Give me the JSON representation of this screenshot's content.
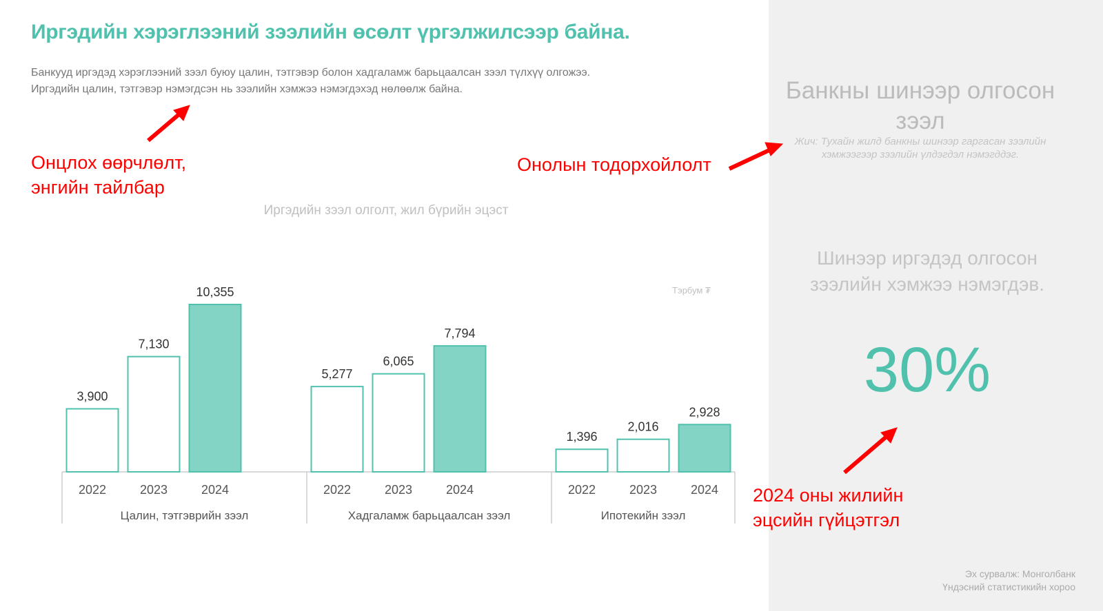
{
  "title": "Иргэдийн хэрэглээний зээлийн өсөлт үргэлжилсээр байна.",
  "subtitle_lines": [
    "Банкууд иргэдэд хэрэглээний зээл буюу цалин, тэтгэвэр болон хадгаламж барьцаалсан зээл түлхүү олгожээ.",
    "Иргэдийн цалин, тэтгэвэр нэмэгдсэн нь зээлийн хэмжээ нэмэгдэхэд нөлөөлж байна."
  ],
  "annotations": {
    "left_1": "Онцлох өөрчлөлт,",
    "left_2": "энгийн тайлбар",
    "middle": "Онолын тодорхойлолт",
    "bottom_1": "2024 оны жилийн",
    "bottom_2": "эцсийн гүйцэтгэл"
  },
  "right_panel": {
    "heading": "Банкны шинээр олгосон зээл",
    "note": "Жич: Тухайн жилд банкны шинээр гаргасан зээлийн хэмжээгээр зээлийн үлдэгдэл нэмэгддэг.",
    "statement": "Шинээр иргэдэд олгосон зээлийн хэмжээ нэмэгдэв.",
    "percent": "30%",
    "source_1": "Эх сурвалж: Монголбанк",
    "source_2": "Үндэсний статистикийн хороо"
  },
  "colors": {
    "accent": "#4fc1ad",
    "bar_fill_2024": "#84d4c6",
    "annotation": "#ff0000"
  },
  "chart_data": {
    "type": "bar",
    "title": "Иргэдийн зээл олголт, жил бүрийн эцэст",
    "unit": "Тэрбум ₮",
    "categories": [
      "Цалин, тэтгэврийн зээл",
      "Хадгаламж барьцаалсан зээл",
      "Ипотекийн зээл"
    ],
    "years": [
      "2022",
      "2023",
      "2024"
    ],
    "values": [
      [
        3900,
        7130,
        10355
      ],
      [
        5277,
        6065,
        7794
      ],
      [
        1396,
        2016,
        2928
      ]
    ],
    "labels": [
      [
        "3,900",
        "7,130",
        "10,355"
      ],
      [
        "5,277",
        "6,065",
        "7,794"
      ],
      [
        "1,396",
        "2,016",
        "2,928"
      ]
    ],
    "ylim": [
      0,
      10355
    ],
    "grid": false,
    "legend": "none"
  }
}
